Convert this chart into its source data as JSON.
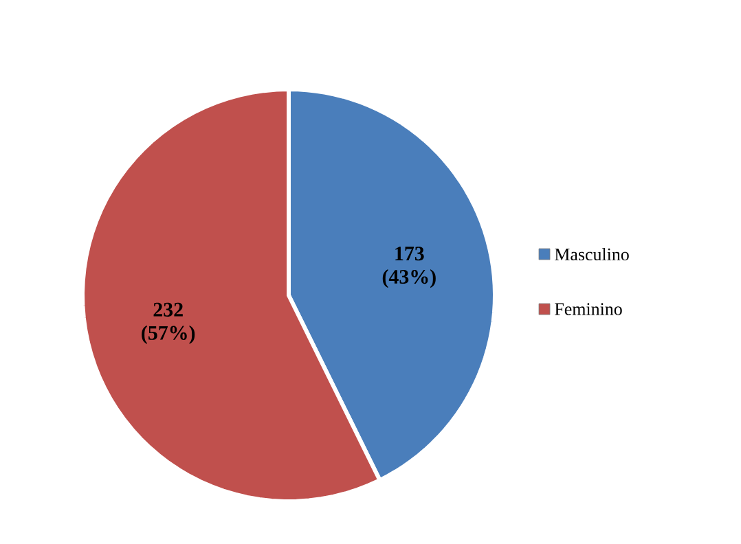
{
  "chart_data": {
    "type": "pie",
    "categories": [
      "Masculino",
      "Feminino"
    ],
    "values": [
      173,
      232
    ],
    "colors": [
      "#4a7ebb",
      "#c0504d"
    ],
    "value_labels": [
      "173 (43%)",
      "232 (57%)"
    ],
    "legend": "right"
  }
}
